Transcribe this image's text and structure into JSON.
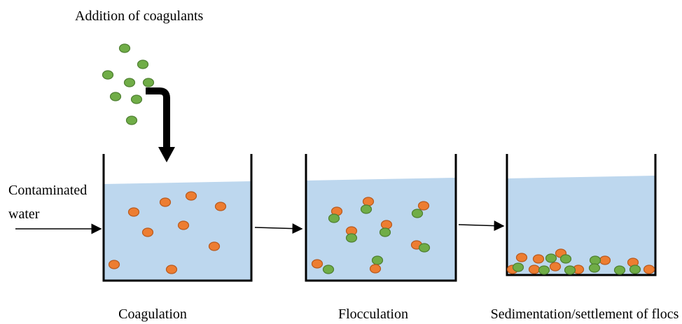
{
  "title": "Addition of coagulants",
  "inlet": {
    "lines": [
      "Contaminated",
      "water"
    ]
  },
  "stages": [
    {
      "label": "Coagulation"
    },
    {
      "label": "Flocculation"
    },
    {
      "label": "Sedimentation/settlement of flocs"
    }
  ]
}
